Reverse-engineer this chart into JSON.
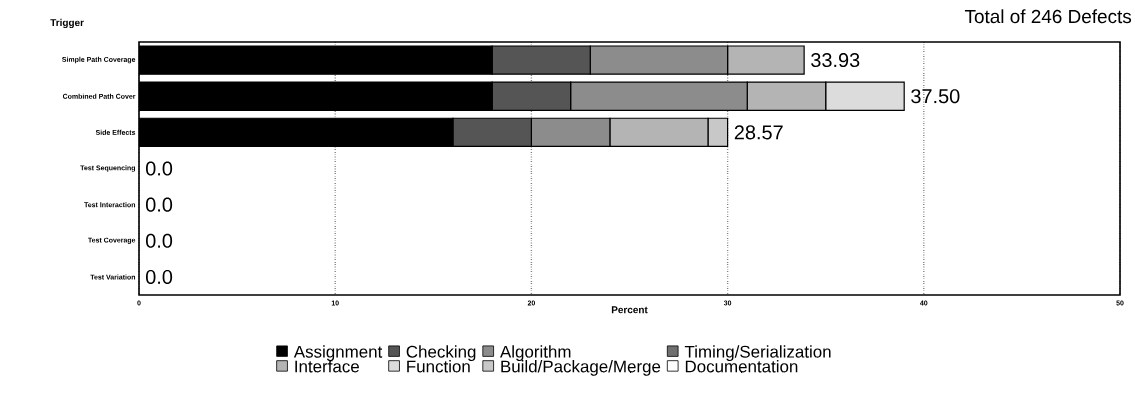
{
  "chart_data": {
    "type": "bar",
    "orientation": "horizontal",
    "stacked": true,
    "title": "Total of 246 Defects",
    "ylabel": "Trigger",
    "xlabel": "Percent",
    "categories": [
      "Simple Path Coverage",
      "Combined Path Cover",
      "Side Effects",
      "Test Sequencing",
      "Test Interaction",
      "Test Coverage",
      "Test Variation"
    ],
    "series": [
      {
        "name": "Assignment",
        "color": "#000000",
        "values": [
          18,
          18,
          16,
          0,
          0,
          0,
          0
        ]
      },
      {
        "name": "Checking",
        "color": "#555555",
        "values": [
          5,
          4,
          4,
          0,
          0,
          0,
          0
        ]
      },
      {
        "name": "Algorithm",
        "color": "#8c8c8c",
        "values": [
          7,
          9,
          4,
          0,
          0,
          0,
          0
        ]
      },
      {
        "name": "Interface",
        "color": "#b4b4b4",
        "values": [
          3.9,
          4,
          5,
          0,
          0,
          0,
          0
        ]
      },
      {
        "name": "Function",
        "color": "#dcdcdc",
        "values": [
          0,
          4,
          0,
          0,
          0,
          0,
          0
        ]
      },
      {
        "name": "Timing/Serialization",
        "color": "#707070",
        "values": [
          0,
          0,
          0,
          0,
          0,
          0,
          0
        ]
      },
      {
        "name": "Build/Package/Merge",
        "color": "#c8c8c8",
        "values": [
          0,
          0,
          1,
          0,
          0,
          0,
          0
        ]
      },
      {
        "name": "Documentation",
        "color": "#ffffff",
        "values": [
          0,
          0,
          0,
          0,
          0,
          0,
          0
        ]
      }
    ],
    "annotations": [
      {
        "text": "33.93",
        "x": 33.9,
        "y": "Simple Path Coverage"
      },
      {
        "text": "37.50",
        "x": 39,
        "y": "Combined Path Cover"
      },
      {
        "text": "28.57",
        "x": 30,
        "y": "Side Effects"
      },
      {
        "text": "0.0",
        "x": 0,
        "y": "Test Sequencing"
      },
      {
        "text": "0.0",
        "x": 0,
        "y": "Test Interaction"
      },
      {
        "text": "0.0",
        "x": 0,
        "y": "Test Coverage"
      },
      {
        "text": "0.0",
        "x": 0,
        "y": "Test Variation"
      }
    ],
    "xlim": [
      0,
      50
    ],
    "xticks": [
      0,
      10,
      20,
      30,
      40,
      50
    ],
    "grid": "x",
    "legend": "bottom"
  }
}
